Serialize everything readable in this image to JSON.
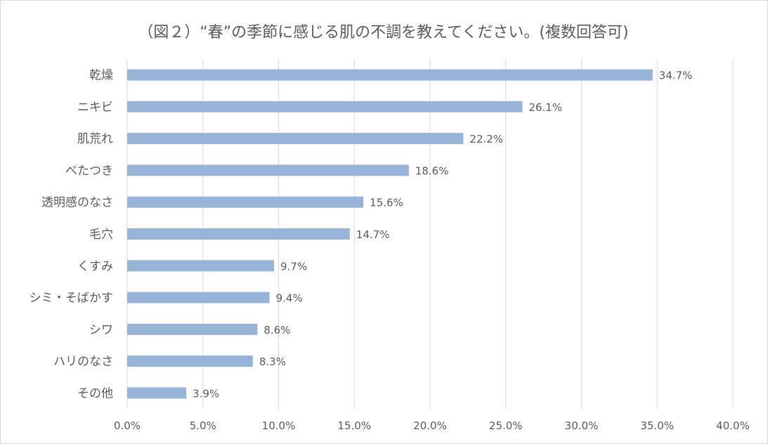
{
  "chart_data": {
    "type": "bar",
    "orientation": "horizontal",
    "title": "（図２）“春”の季節に感じる肌の不調を教えてください。(複数回答可)",
    "categories": [
      "乾燥",
      "ニキビ",
      "肌荒れ",
      "べたつき",
      "透明感のなさ",
      "毛穴",
      "くすみ",
      "シミ・そばかす",
      "シワ",
      "ハリのなさ",
      "その他"
    ],
    "values": [
      34.7,
      26.1,
      22.2,
      18.6,
      15.6,
      14.7,
      9.7,
      9.4,
      8.6,
      8.3,
      3.9
    ],
    "data_labels": [
      "34.7%",
      "26.1%",
      "22.2%",
      "18.6%",
      "15.6%",
      "14.7%",
      "9.7%",
      "9.4%",
      "8.6%",
      "8.3%",
      "3.9%"
    ],
    "xlim": [
      0,
      40
    ],
    "x_ticks": [
      "0.0%",
      "5.0%",
      "10.0%",
      "15.0%",
      "20.0%",
      "25.0%",
      "30.0%",
      "35.0%",
      "40.0%"
    ],
    "xlabel": "",
    "ylabel": "",
    "grid": "vertical",
    "legend": "none",
    "bar_color": "#97b3d8",
    "grid_color": "#d9d9d9"
  }
}
